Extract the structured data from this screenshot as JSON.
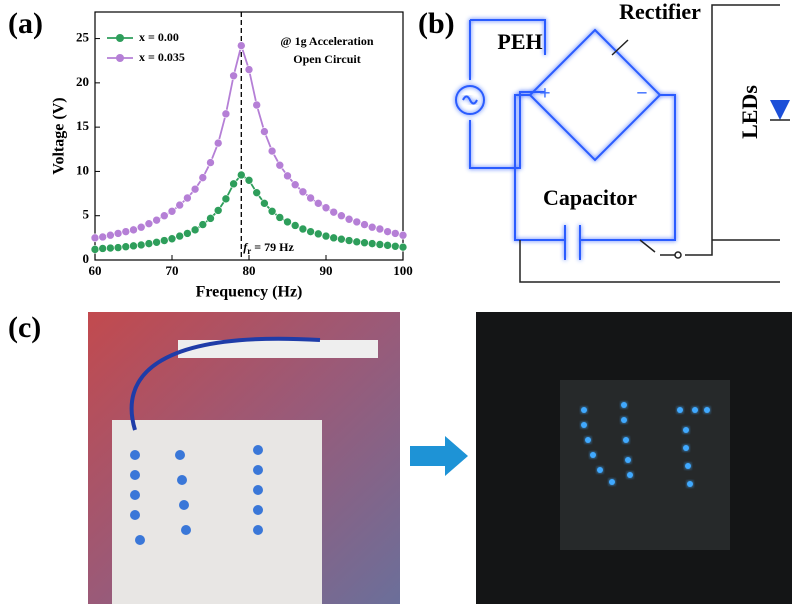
{
  "panels": [
    "(a)",
    "(b)",
    "(c)"
  ],
  "chart_data": {
    "type": "line",
    "x_label": "Frequency (Hz)",
    "y_label": "Voltage (V)",
    "xlim": [
      60,
      100
    ],
    "xticks": [
      60,
      70,
      80,
      90,
      100
    ],
    "ylim": [
      0,
      28
    ],
    "yticks": [
      0,
      5,
      10,
      15,
      20,
      25
    ],
    "x": [
      60,
      61,
      62,
      63,
      64,
      65,
      66,
      67,
      68,
      69,
      70,
      71,
      72,
      73,
      74,
      75,
      76,
      77,
      78,
      79,
      80,
      81,
      82,
      83,
      84,
      85,
      86,
      87,
      88,
      89,
      90,
      91,
      92,
      93,
      94,
      95,
      96,
      97,
      98,
      99,
      100
    ],
    "series": [
      {
        "name": "x = 0.00",
        "color": "#2e9e5b",
        "values": [
          1.2,
          1.3,
          1.35,
          1.4,
          1.5,
          1.6,
          1.7,
          1.85,
          2.0,
          2.2,
          2.4,
          2.7,
          3.0,
          3.4,
          4.0,
          4.7,
          5.6,
          6.9,
          8.6,
          9.6,
          9.0,
          7.6,
          6.4,
          5.5,
          4.8,
          4.3,
          3.9,
          3.5,
          3.2,
          2.95,
          2.7,
          2.5,
          2.35,
          2.2,
          2.05,
          1.95,
          1.85,
          1.75,
          1.65,
          1.55,
          1.45
        ]
      },
      {
        "name": "x = 0.035",
        "color": "#b57fd6",
        "values": [
          2.5,
          2.6,
          2.8,
          3.0,
          3.2,
          3.4,
          3.7,
          4.1,
          4.5,
          5.0,
          5.5,
          6.2,
          7.0,
          8.0,
          9.3,
          11.0,
          13.2,
          16.5,
          20.8,
          24.2,
          21.5,
          17.5,
          14.5,
          12.3,
          10.7,
          9.5,
          8.5,
          7.7,
          7.0,
          6.4,
          5.9,
          5.4,
          5.0,
          4.6,
          4.3,
          4.0,
          3.7,
          3.5,
          3.2,
          3.0,
          2.8
        ]
      }
    ],
    "legend": "upper left",
    "annotations": [
      "@ 1g Acceleration",
      "Open Circuit"
    ],
    "vline": {
      "value": 79,
      "symbol": "f",
      "subscript": "r",
      "text": " = 79 Hz"
    }
  },
  "diagram": {
    "labels": [
      "PEH",
      "Rectifier",
      "Capacitor",
      "LEDs",
      "+",
      "−"
    ]
  }
}
